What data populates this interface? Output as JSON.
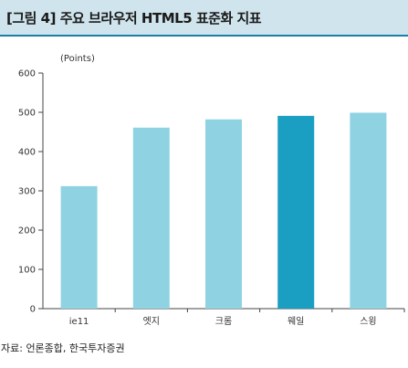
{
  "header": {
    "title": "[그림 4] 주요 브라우저 HTML5 표준화 지표"
  },
  "source": "자료: 언론종합, 한국투자증권",
  "colors": {
    "bar": "#8fd3e2",
    "highlight": "#1a9fc3",
    "axis": "#444444"
  },
  "chart_data": {
    "type": "bar",
    "title": "[그림 4] 주요 브라우저 HTML5 표준화 지표",
    "xlabel": "",
    "ylabel": "(Points)",
    "categories": [
      "ie11",
      "엣지",
      "크롬",
      "웨일",
      "스윙"
    ],
    "values": [
      312,
      461,
      482,
      491,
      499
    ],
    "highlight_index": 3,
    "ylim": [
      0,
      600
    ],
    "yticks": [
      0,
      100,
      200,
      300,
      400,
      500,
      600
    ],
    "grid": false,
    "legend": "none"
  }
}
